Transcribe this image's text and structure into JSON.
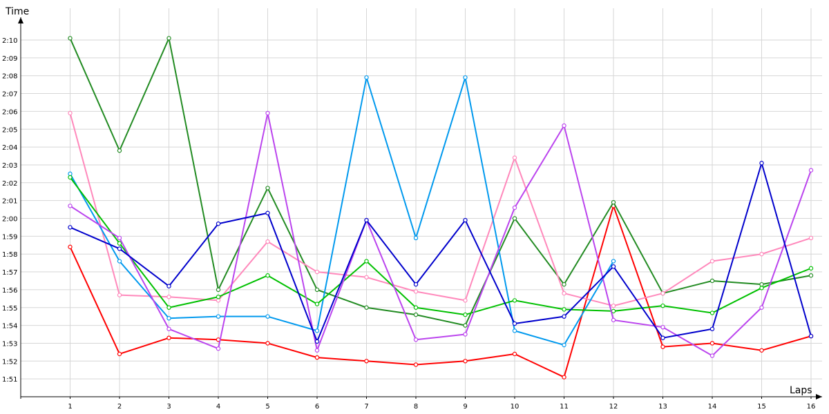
{
  "chart_data": {
    "type": "line",
    "xlabel": "Laps",
    "ylabel": "Time",
    "grid": true,
    "legend": "none",
    "x": [
      1,
      2,
      3,
      4,
      5,
      6,
      7,
      8,
      9,
      10,
      11,
      12,
      13,
      14,
      15,
      16
    ],
    "xlim": [
      0,
      16
    ],
    "ylim": [
      110,
      132
    ],
    "y_ticks": [
      111,
      112,
      113,
      114,
      115,
      116,
      117,
      118,
      119,
      120,
      121,
      122,
      123,
      124,
      125,
      126,
      127,
      128,
      129,
      130
    ],
    "y_tick_labels": [
      "1:51",
      "1:52",
      "1:53",
      "1:54",
      "1:55",
      "1:56",
      "1:57",
      "1:58",
      "1:59",
      "2:00",
      "2:01",
      "2:02",
      "2:03",
      "2:04",
      "2:05",
      "2:06",
      "2:07",
      "2:08",
      "2:09",
      "2:10"
    ],
    "series": [
      {
        "color": "#ff0000",
        "values": [
          118.4,
          112.4,
          113.3,
          113.2,
          113.0,
          112.2,
          112.0,
          111.8,
          112.0,
          112.4,
          111.1,
          120.7,
          112.8,
          113.0,
          112.6,
          113.4
        ]
      },
      {
        "color": "#228b22",
        "values": [
          130.1,
          123.8,
          130.1,
          116.0,
          121.7,
          116.0,
          115.0,
          114.6,
          114.0,
          120.0,
          116.3,
          120.9,
          115.8,
          116.5,
          116.3,
          116.8
        ]
      },
      {
        "color": "#ff88bb",
        "values": [
          125.9,
          115.7,
          115.6,
          115.4,
          118.7,
          117.0,
          116.7,
          115.9,
          115.4,
          123.4,
          115.8,
          115.1,
          115.8,
          117.6,
          118.0,
          118.9
        ]
      },
      {
        "color": "#0099ee",
        "values": [
          122.5,
          117.6,
          114.4,
          114.5,
          114.5,
          113.7,
          127.9,
          118.9,
          127.9,
          113.7,
          112.9,
          117.6,
          null,
          null,
          null,
          null
        ]
      },
      {
        "color": "#00c000",
        "values": [
          122.3,
          118.6,
          115.0,
          115.6,
          116.8,
          115.2,
          117.6,
          115.0,
          114.6,
          115.4,
          114.9,
          114.8,
          115.1,
          114.7,
          116.1,
          117.2
        ]
      },
      {
        "color": "#bb44ee",
        "values": [
          120.7,
          118.9,
          113.8,
          112.7,
          125.9,
          112.6,
          119.9,
          113.2,
          113.5,
          120.6,
          125.2,
          114.3,
          113.9,
          112.3,
          115.0,
          122.7
        ]
      },
      {
        "color": "#0000cc",
        "values": [
          119.5,
          118.3,
          116.2,
          119.7,
          120.3,
          113.1,
          119.9,
          116.3,
          119.9,
          114.1,
          114.5,
          117.3,
          113.3,
          113.8,
          123.1,
          113.4
        ]
      }
    ]
  }
}
